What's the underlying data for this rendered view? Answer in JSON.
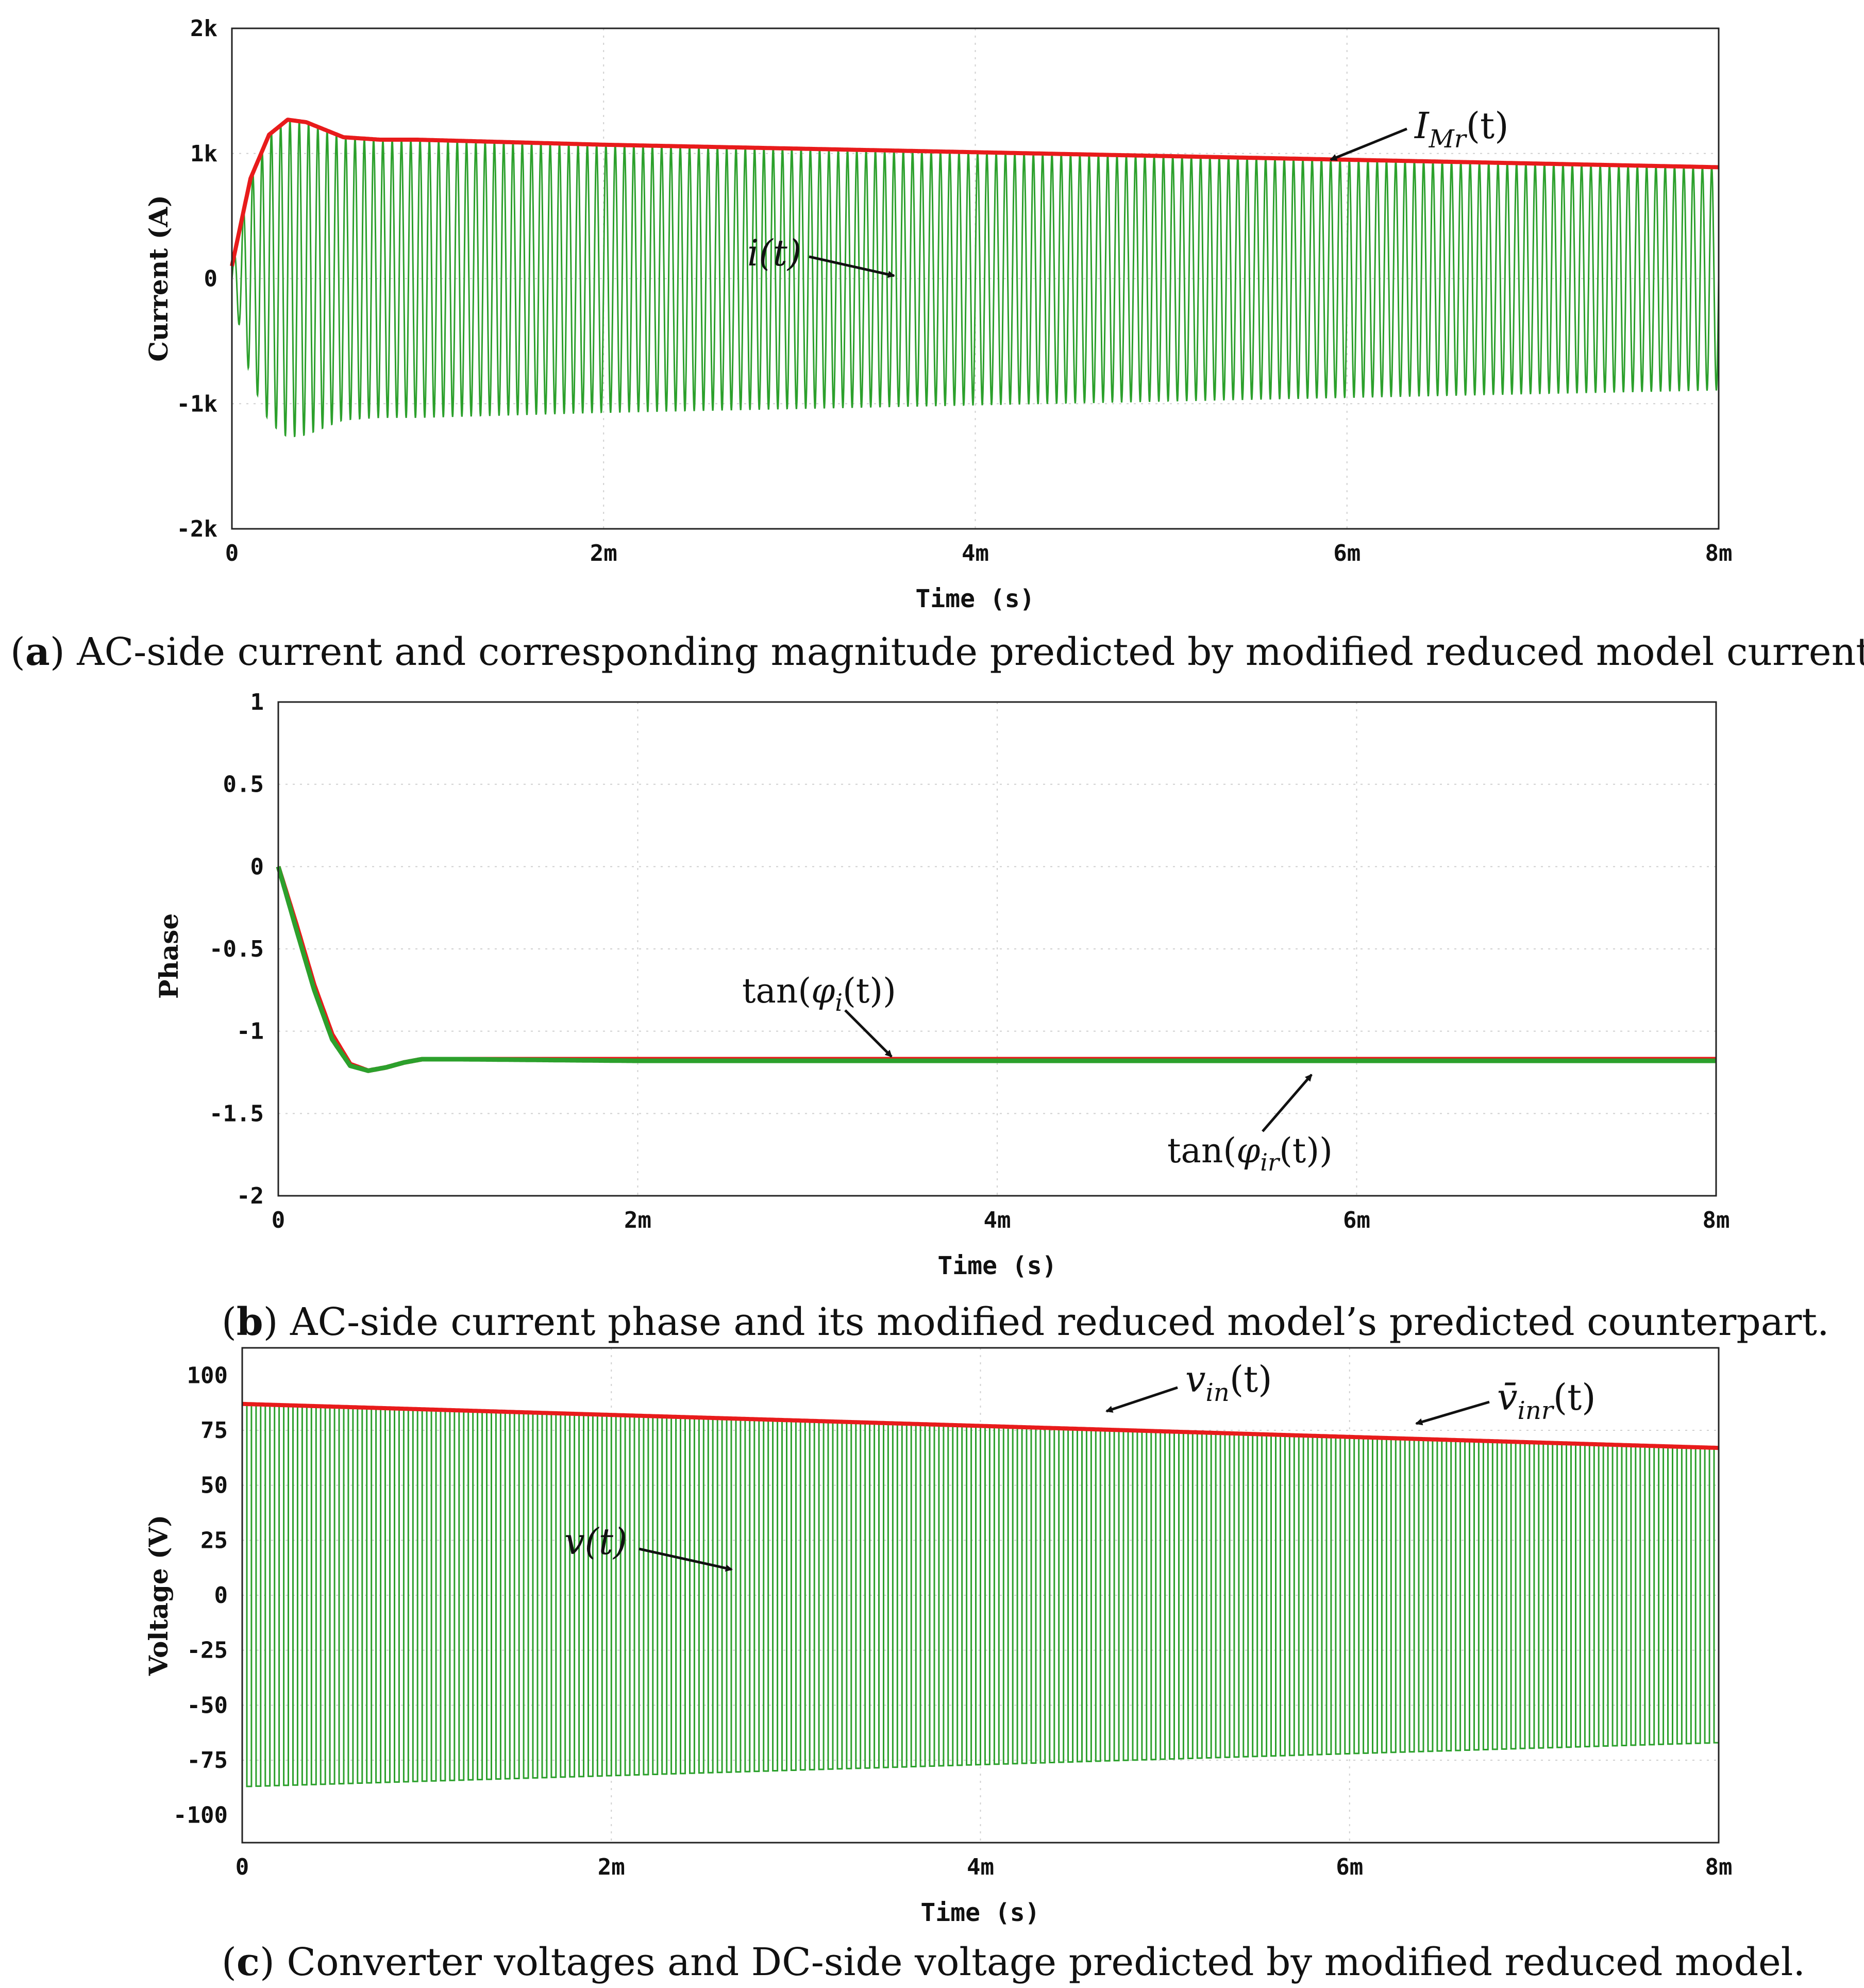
{
  "chart_data": [
    {
      "type": "line",
      "caption_letter": "a",
      "caption": ") AC-side current and corresponding magnitude predicted by modified reduced model current.",
      "xlabel": "Time (s)",
      "ylabel": "Current (A)",
      "xlim": [
        0,
        0.008
      ],
      "ylim": [
        -2000,
        2000
      ],
      "x_ticks": [
        0,
        0.002,
        0.004,
        0.006,
        0.008
      ],
      "x_tick_labels": [
        "0",
        "2m",
        "4m",
        "6m",
        "8m"
      ],
      "y_ticks": [
        2000,
        1000,
        0,
        -1000,
        -2000
      ],
      "y_tick_labels": [
        "2k",
        "1k",
        "0",
        "-1k",
        "-2k"
      ],
      "grid": true,
      "series": [
        {
          "label": "i(t)",
          "color": "#2ca02c",
          "kind": "oscillation",
          "period": 5e-05,
          "envelope_x": [
            0,
            0.0001,
            0.0002,
            0.0003,
            0.0004,
            0.0006,
            0.0008,
            0.001,
            0.002,
            0.004,
            0.006,
            0.008
          ],
          "envelope_y": [
            100,
            800,
            1150,
            1270,
            1250,
            1130,
            1110,
            1110,
            1070,
            1010,
            950,
            890
          ]
        },
        {
          "label": "I_Mr(t)",
          "color": "#e81b1b",
          "kind": "line",
          "x": [
            0,
            0.0001,
            0.0002,
            0.0003,
            0.0004,
            0.0006,
            0.0008,
            0.001,
            0.002,
            0.004,
            0.006,
            0.008
          ],
          "y": [
            100,
            800,
            1150,
            1270,
            1250,
            1130,
            1110,
            1110,
            1070,
            1010,
            950,
            890
          ]
        }
      ],
      "annotations": {
        "i_label": "i(t)",
        "imr_main": "I",
        "imr_sub": "Mr",
        "imr_tail": "(t)"
      }
    },
    {
      "type": "line",
      "caption_letter": "b",
      "caption": ") AC-side current phase and its modified reduced model’s predicted counterpart.",
      "xlabel": "Time (s)",
      "ylabel": "Phase",
      "xlim": [
        0,
        0.008
      ],
      "ylim": [
        -2,
        1
      ],
      "x_ticks": [
        0,
        0.002,
        0.004,
        0.006,
        0.008
      ],
      "x_tick_labels": [
        "0",
        "2m",
        "4m",
        "6m",
        "8m"
      ],
      "y_ticks": [
        1,
        0.5,
        0,
        -0.5,
        -1,
        -1.5,
        -2
      ],
      "y_tick_labels": [
        "1",
        "0.5",
        "0",
        "-0.5",
        "-1",
        "-1.5",
        "-2"
      ],
      "grid": true,
      "series": [
        {
          "label": "tan(φ_i(t))",
          "color": "#e81b1b",
          "kind": "line",
          "x": [
            0,
            0.0001,
            0.0002,
            0.0003,
            0.0004,
            0.0005,
            0.0006,
            0.0007,
            0.0008,
            0.001,
            0.002,
            0.004,
            0.006,
            0.008
          ],
          "y": [
            0,
            -0.35,
            -0.72,
            -1.02,
            -1.2,
            -1.24,
            -1.22,
            -1.19,
            -1.17,
            -1.17,
            -1.17,
            -1.17,
            -1.17,
            -1.17
          ]
        },
        {
          "label": "tan(φ_ir(t))",
          "color": "#2ca02c",
          "kind": "line",
          "x": [
            0,
            0.0001,
            0.0002,
            0.0003,
            0.0004,
            0.0005,
            0.0006,
            0.0007,
            0.0008,
            0.001,
            0.002,
            0.004,
            0.006,
            0.008
          ],
          "y": [
            0,
            -0.38,
            -0.75,
            -1.05,
            -1.21,
            -1.24,
            -1.22,
            -1.19,
            -1.17,
            -1.17,
            -1.18,
            -1.18,
            -1.18,
            -1.18
          ]
        }
      ],
      "annotations": {
        "phi_i_pre": "tan(",
        "phi_i_phi": "φ",
        "phi_i_sub": "i",
        "phi_i_tail": "(t))",
        "phi_ir_pre": "tan(",
        "phi_ir_phi": "φ",
        "phi_ir_sub": "ir",
        "phi_ir_tail": "(t))"
      }
    },
    {
      "type": "line",
      "caption_letter": "c",
      "caption": ") Converter voltages and DC-side voltage predicted by modified reduced model.",
      "xlabel": "Time (s)",
      "ylabel": "Voltage (V)",
      "xlim": [
        0,
        0.008
      ],
      "ylim": [
        -112.5,
        112.5
      ],
      "x_ticks": [
        0,
        0.002,
        0.004,
        0.006,
        0.008
      ],
      "x_tick_labels": [
        "0",
        "2m",
        "4m",
        "6m",
        "8m"
      ],
      "y_ticks": [
        100,
        75,
        50,
        25,
        0,
        -25,
        -50,
        -75,
        -100
      ],
      "y_tick_labels": [
        "100",
        "75",
        "50",
        "25",
        "0",
        "-25",
        "-50",
        "-75",
        "-100"
      ],
      "grid": true,
      "series": [
        {
          "label": "v(t)",
          "color": "#2ca02c",
          "kind": "square",
          "period": 5e-05,
          "envelope_x": [
            0,
            0.002,
            0.004,
            0.006,
            0.008
          ],
          "envelope_y": [
            87,
            82,
            77,
            72,
            67
          ]
        },
        {
          "label": "v_in(t)",
          "color": "#e81b1b",
          "kind": "line",
          "x": [
            0,
            0.002,
            0.004,
            0.006,
            0.008
          ],
          "y": [
            87,
            82,
            77,
            72,
            67
          ]
        }
      ],
      "annotations": {
        "v_label": "v(t)",
        "vin_main": "v",
        "vin_sub": "in",
        "vin_tail": "(t)",
        "vinr_main": "v̄",
        "vinr_sub": "inr",
        "vinr_tail": "(t)"
      }
    }
  ]
}
